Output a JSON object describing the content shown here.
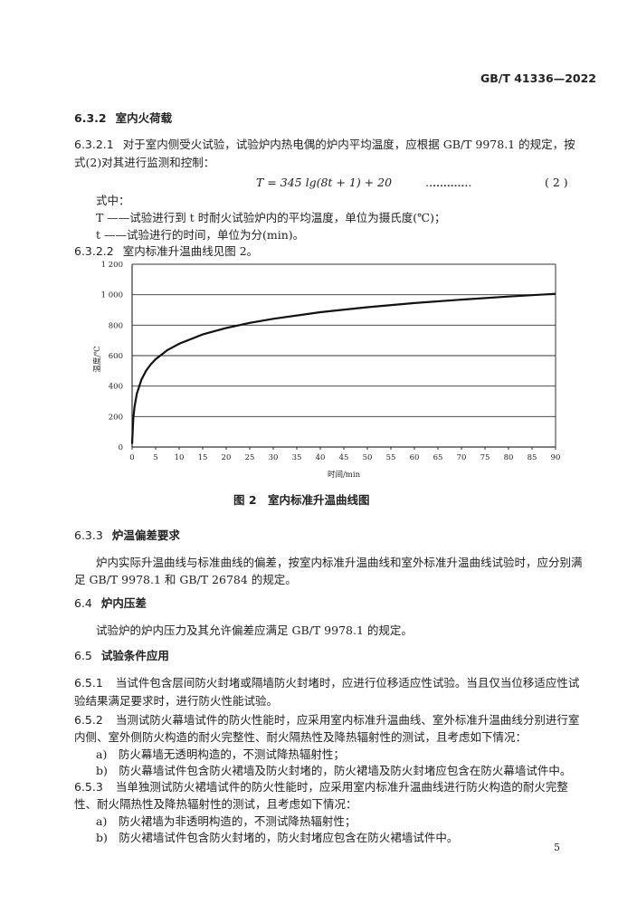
{
  "header": {
    "standard": "GB/T 41336—2022"
  },
  "s632": {
    "num": "6.3.2",
    "title": "室内火荷载"
  },
  "s6321": {
    "num": "6.3.2.1",
    "line1": "对于室内侧受火试验，试验炉内热电偶的炉内平均温度，应根据 GB/T 9978.1 的规定，按",
    "line2": "式(2)对其进行监测和控制："
  },
  "formula": {
    "expr": "T = 345 lg(8t + 1) + 20",
    "leader": "……………………………",
    "ref": "( 2 )"
  },
  "where": {
    "label": "式中：",
    "T": "T ——试验进行到 t 时耐火试验炉内的平均温度，单位为摄氏度(℃)；",
    "t": "t ——试验进行的时间，单位为分(min)。"
  },
  "s6322": {
    "num": "6.3.2.2",
    "text": "室内标准升温曲线见图 2。"
  },
  "chart_data": {
    "type": "line",
    "xlabel": "时间/min",
    "ylabel": "温度/℃",
    "xlim": [
      0,
      90
    ],
    "ylim": [
      0,
      1200
    ],
    "xticks": [
      "0",
      "5",
      "10",
      "15",
      "20",
      "25",
      "30",
      "35",
      "40",
      "45",
      "50",
      "55",
      "60",
      "65",
      "70",
      "75",
      "80",
      "85",
      "90"
    ],
    "yticks": [
      "0",
      "200",
      "400",
      "600",
      "800",
      "1 000",
      "1 200"
    ],
    "grid": "horizontal",
    "x": [
      0,
      0.25,
      0.5,
      1,
      2,
      3,
      4,
      5,
      7.5,
      10,
      15,
      20,
      25,
      30,
      40,
      50,
      60,
      70,
      80,
      90
    ],
    "y": [
      20,
      185,
      261,
      349,
      444,
      502,
      544,
      576,
      636,
      678,
      739,
      781,
      815,
      842,
      885,
      918,
      945,
      968,
      988,
      1006
    ],
    "color": "#111111"
  },
  "caption": "图 2　室内标准升温曲线图",
  "s633": {
    "num": "6.3.3",
    "title": "炉温偏差要求",
    "line1": "炉内实际升温曲线与标准曲线的偏差，按室内标准升温曲线和室外标准升温曲线试验时，应分别满",
    "line2": "足 GB/T 9978.1 和 GB/T 26784 的规定。"
  },
  "s64": {
    "num": "6.4",
    "title": "炉内压差",
    "text": "试验炉的炉内压力及其允许偏差应满足 GB/T 9978.1 的规定。"
  },
  "s65": {
    "num": "6.5",
    "title": "试验条件应用"
  },
  "s651": {
    "num": "6.5.1",
    "line1": "当试件包含层间防火封堵或隔墙防火封堵时，应进行位移适应性试验。当且仅当位移适应性试",
    "line2": "验结果满足要求时，进行防火性能试验。"
  },
  "s652": {
    "num": "6.5.2",
    "line1": "当测试防火幕墙试件的防火性能时，应采用室内标准升温曲线、室外标准升温曲线分别进行室",
    "line2": "内侧、室外侧防火构造的耐火完整性、耐火隔热性及降热辐射性的测试，且考虑如下情况：",
    "a": "a)　防火幕墙无透明构造的，不测试降热辐射性；",
    "b": "b)　防火幕墙试件包含防火裙墙及防火封堵的，防火裙墙及防火封堵应包含在防火幕墙试件中。"
  },
  "s653": {
    "num": "6.5.3",
    "line1": "当单独测试防火裙墙试件的防火性能时，应采用室内标准升温曲线进行防火构造的耐火完整",
    "line2": "性、耐火隔热性及降热辐射性的测试，且考虑如下情况：",
    "a": "a)　防火裙墙为非透明构造的，不测试降热辐射性；",
    "b": "b)　防火裙墙试件包含防火封堵的，防火封堵应包含在防火裙墙试件中。"
  },
  "footer": {
    "page": "5"
  }
}
